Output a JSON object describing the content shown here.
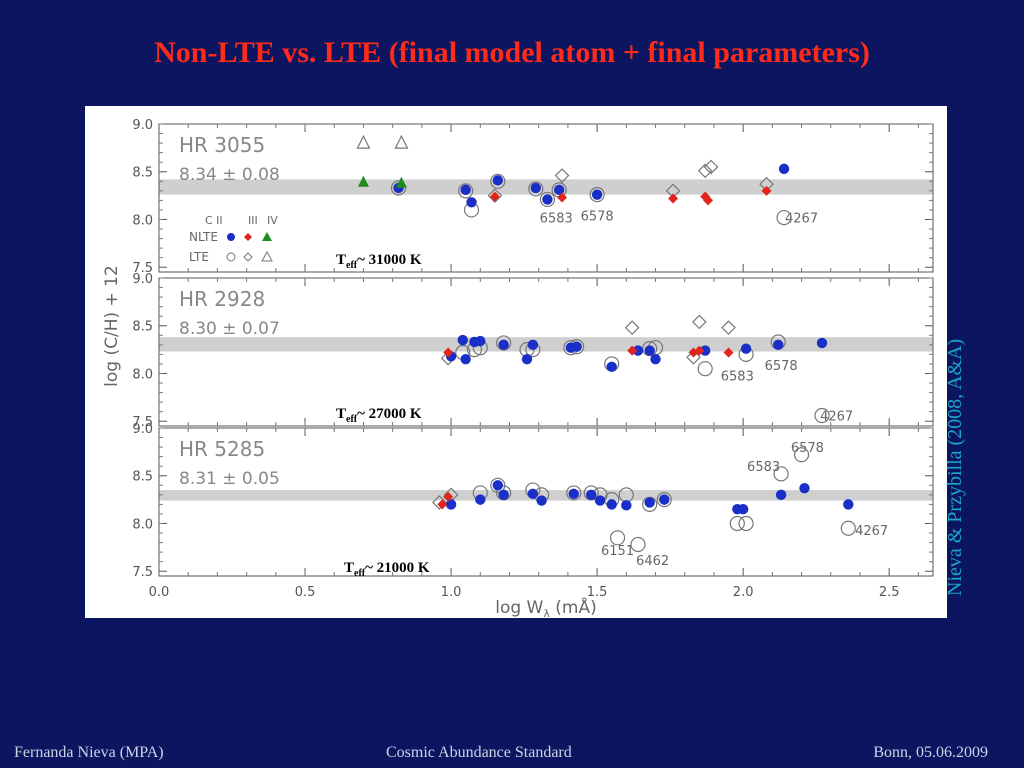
{
  "slide": {
    "title": "Non-LTE vs. LTE (final model atom + final parameters)",
    "side_credit": "Nieva & Przybilla (2008, A&A)",
    "footer_left": "Fernanda Nieva (MPA)",
    "footer_center": "Cosmic Abundance Standard",
    "footer_right": "Bonn, 05.06.2009"
  },
  "colors": {
    "background": "#0b1560",
    "title": "#ff2a1a",
    "nlte_c2": "#1a2fc8",
    "nlte_c3": "#e0261c",
    "nlte_c4": "#1f8a1f",
    "band": "#cfcfcf",
    "credit": "#1aa7c8"
  },
  "chart_data": {
    "type": "scatter",
    "xlabel": "log W",
    "xlabel_sub": "λ",
    "xlabel_unit": " (mÅ)",
    "ylabel": "log (C/H) + 12",
    "xlim": [
      0.0,
      2.65
    ],
    "ylim": [
      7.45,
      9.0
    ],
    "x_ticks": [
      "0.0",
      "0.5",
      "1.0",
      "1.5",
      "2.0",
      "2.5"
    ],
    "y_ticks": [
      "7.5",
      "8.0",
      "8.5",
      "9.0"
    ],
    "legend": {
      "header": [
        "C II",
        "III",
        "IV"
      ],
      "nlte_label": "NLTE",
      "lte_label": "LTE"
    },
    "panels": [
      {
        "star": "HR 3055",
        "abundance": "8.34 ± 0.08",
        "teff_prefix": "T",
        "teff_sub": "eff",
        "teff_value": "~ 31000 K",
        "band": [
          8.26,
          8.42
        ],
        "labels": [
          {
            "text": "6583",
            "x": 1.36,
            "y": 8.02
          },
          {
            "text": "6578",
            "x": 1.5,
            "y": 8.04
          },
          {
            "text": "4267",
            "x": 2.2,
            "y": 8.02
          }
        ],
        "nlte_c2": [
          [
            0.82,
            8.33
          ],
          [
            1.05,
            8.31
          ],
          [
            1.07,
            8.18
          ],
          [
            1.16,
            8.41
          ],
          [
            1.29,
            8.33
          ],
          [
            1.33,
            8.21
          ],
          [
            1.37,
            8.31
          ],
          [
            1.5,
            8.26
          ],
          [
            2.14,
            8.53
          ]
        ],
        "nlte_c3": [
          [
            1.15,
            8.24
          ],
          [
            1.38,
            8.23
          ],
          [
            1.76,
            8.22
          ],
          [
            1.87,
            8.24
          ],
          [
            1.88,
            8.2
          ],
          [
            2.08,
            8.3
          ]
        ],
        "nlte_c4": [
          [
            0.7,
            8.4
          ],
          [
            0.83,
            8.39
          ]
        ],
        "lte_c2": [
          [
            0.82,
            8.33
          ],
          [
            1.05,
            8.3
          ],
          [
            1.07,
            8.1
          ],
          [
            1.16,
            8.4
          ],
          [
            1.29,
            8.32
          ],
          [
            1.33,
            8.21
          ],
          [
            1.37,
            8.31
          ],
          [
            1.5,
            8.26
          ],
          [
            2.14,
            8.02
          ]
        ],
        "lte_c3": [
          [
            1.15,
            8.25
          ],
          [
            1.38,
            8.46
          ],
          [
            1.76,
            8.3
          ],
          [
            1.87,
            8.51
          ],
          [
            1.89,
            8.55
          ],
          [
            2.08,
            8.37
          ]
        ],
        "lte_c4": [
          [
            0.7,
            8.81
          ],
          [
            0.83,
            8.81
          ]
        ]
      },
      {
        "star": "HR 2928",
        "abundance": "8.30 ± 0.07",
        "teff_prefix": "T",
        "teff_sub": "eff",
        "teff_value": "~ 27000 K",
        "band": [
          8.23,
          8.38
        ],
        "labels": [
          {
            "text": "6583",
            "x": 1.98,
            "y": 7.98
          },
          {
            "text": "6578",
            "x": 2.13,
            "y": 8.09
          },
          {
            "text": "4267",
            "x": 2.32,
            "y": 7.56
          }
        ],
        "nlte_c2": [
          [
            1.0,
            8.18
          ],
          [
            1.04,
            8.35
          ],
          [
            1.05,
            8.15
          ],
          [
            1.08,
            8.33
          ],
          [
            1.1,
            8.34
          ],
          [
            1.18,
            8.3
          ],
          [
            1.26,
            8.15
          ],
          [
            1.28,
            8.3
          ],
          [
            1.41,
            8.27
          ],
          [
            1.43,
            8.28
          ],
          [
            1.55,
            8.07
          ],
          [
            1.64,
            8.24
          ],
          [
            1.68,
            8.24
          ],
          [
            1.7,
            8.15
          ],
          [
            1.87,
            8.24
          ],
          [
            2.01,
            8.26
          ],
          [
            2.12,
            8.3
          ],
          [
            2.27,
            8.32
          ]
        ],
        "nlte_c3": [
          [
            0.99,
            8.22
          ],
          [
            1.62,
            8.24
          ],
          [
            1.83,
            8.22
          ],
          [
            1.85,
            8.24
          ],
          [
            1.95,
            8.22
          ]
        ],
        "nlte_c4": [],
        "lte_c2": [
          [
            1.04,
            8.22
          ],
          [
            1.08,
            8.25
          ],
          [
            1.1,
            8.27
          ],
          [
            1.18,
            8.32
          ],
          [
            1.26,
            8.25
          ],
          [
            1.28,
            8.25
          ],
          [
            1.41,
            8.27
          ],
          [
            1.43,
            8.28
          ],
          [
            1.55,
            8.1
          ],
          [
            1.68,
            8.26
          ],
          [
            1.7,
            8.27
          ],
          [
            1.87,
            8.05
          ],
          [
            2.01,
            8.2
          ],
          [
            2.12,
            8.33
          ],
          [
            2.27,
            7.56
          ]
        ],
        "lte_c3": [
          [
            0.99,
            8.16
          ],
          [
            1.62,
            8.48
          ],
          [
            1.83,
            8.17
          ],
          [
            1.85,
            8.54
          ],
          [
            1.95,
            8.48
          ]
        ],
        "lte_c4": []
      },
      {
        "star": "HR 5285",
        "abundance": "8.31 ± 0.05",
        "teff_prefix": "T",
        "teff_sub": "eff",
        "teff_value": "~ 21000 K",
        "band": [
          8.24,
          8.35
        ],
        "labels": [
          {
            "text": "6578",
            "x": 2.22,
            "y": 8.8
          },
          {
            "text": "6583",
            "x": 2.07,
            "y": 8.6
          },
          {
            "text": "6151",
            "x": 1.57,
            "y": 7.72
          },
          {
            "text": "6462",
            "x": 1.69,
            "y": 7.62
          },
          {
            "text": "4267",
            "x": 2.44,
            "y": 7.93
          }
        ],
        "nlte_c2": [
          [
            1.0,
            8.2
          ],
          [
            1.1,
            8.25
          ],
          [
            1.16,
            8.4
          ],
          [
            1.18,
            8.3
          ],
          [
            1.28,
            8.31
          ],
          [
            1.31,
            8.24
          ],
          [
            1.42,
            8.31
          ],
          [
            1.48,
            8.3
          ],
          [
            1.51,
            8.24
          ],
          [
            1.55,
            8.2
          ],
          [
            1.6,
            8.19
          ],
          [
            1.68,
            8.22
          ],
          [
            1.73,
            8.25
          ],
          [
            1.98,
            8.15
          ],
          [
            2.0,
            8.15
          ],
          [
            2.13,
            8.3
          ],
          [
            2.21,
            8.37
          ],
          [
            2.36,
            8.2
          ]
        ],
        "nlte_c3": [
          [
            0.97,
            8.2
          ],
          [
            0.99,
            8.28
          ]
        ],
        "nlte_c4": [],
        "lte_c2": [
          [
            1.1,
            8.32
          ],
          [
            1.16,
            8.4
          ],
          [
            1.18,
            8.32
          ],
          [
            1.28,
            8.35
          ],
          [
            1.31,
            8.3
          ],
          [
            1.42,
            8.32
          ],
          [
            1.48,
            8.32
          ],
          [
            1.51,
            8.3
          ],
          [
            1.55,
            8.25
          ],
          [
            1.57,
            7.85
          ],
          [
            1.6,
            8.3
          ],
          [
            1.64,
            7.78
          ],
          [
            1.68,
            8.2
          ],
          [
            1.73,
            8.25
          ],
          [
            1.98,
            8.0
          ],
          [
            2.01,
            8.0
          ],
          [
            2.13,
            8.52
          ],
          [
            2.2,
            8.72
          ],
          [
            2.36,
            7.95
          ]
        ],
        "lte_c3": [
          [
            0.96,
            8.22
          ],
          [
            1.0,
            8.3
          ]
        ],
        "lte_c4": []
      }
    ]
  }
}
